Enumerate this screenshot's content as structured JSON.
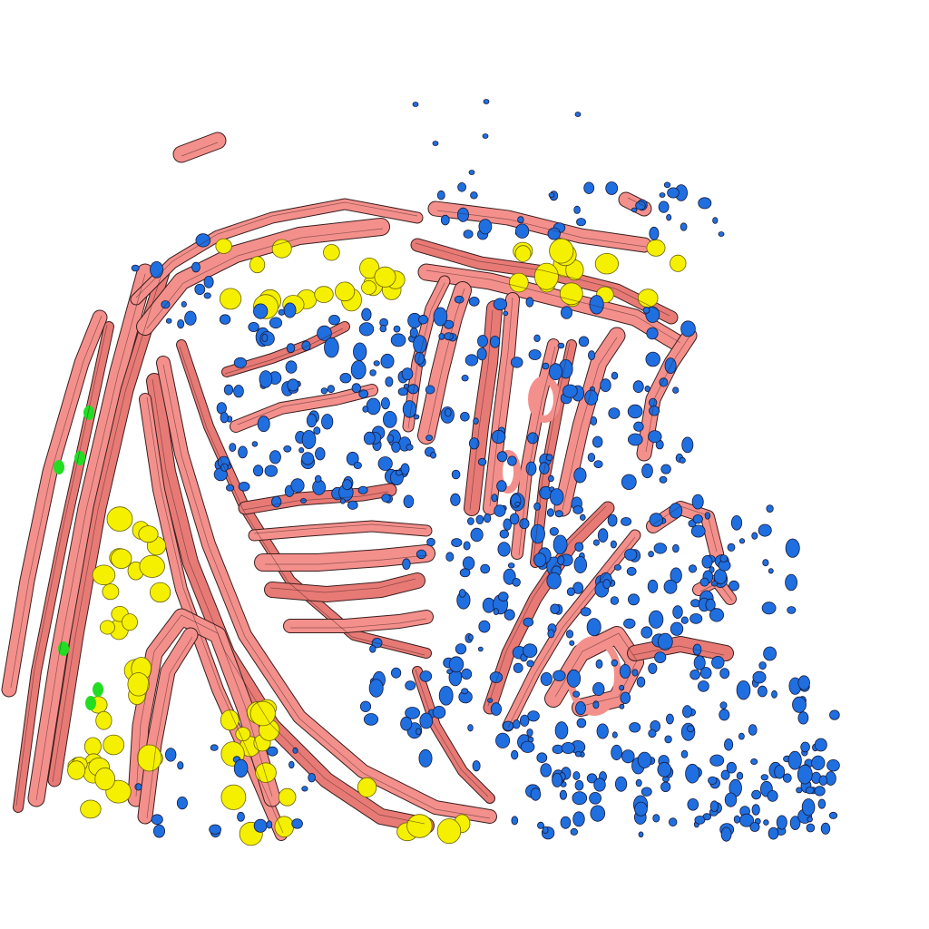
{
  "scene": {
    "background_color": "#ffffff",
    "colors": {
      "strand_fill": "#f4908c",
      "strand_dark": "#e87a76",
      "strand_outline": "#3a1f1f",
      "blue_cells": "#1f6fe0",
      "yellow_cells": "#f5f000",
      "green_cells": "#22dd22"
    },
    "object_classes": [
      "pink-fibrous-strands",
      "blue-cells",
      "yellow-cells",
      "green-cells"
    ]
  }
}
